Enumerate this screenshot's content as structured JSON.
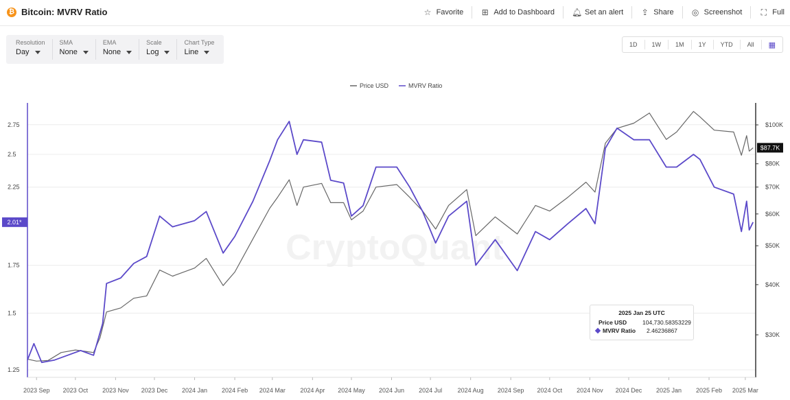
{
  "header": {
    "title": "Bitcoin: MVRV Ratio",
    "icon": "bitcoin-icon",
    "actions": [
      {
        "label": "Favorite",
        "icon": "star-icon"
      },
      {
        "label": "Add to Dashboard",
        "icon": "dashboard-add-icon"
      },
      {
        "label": "Set an alert",
        "icon": "bell-icon"
      },
      {
        "label": "Share",
        "icon": "share-icon"
      },
      {
        "label": "Screenshot",
        "icon": "camera-icon"
      },
      {
        "label": "Full",
        "icon": "fullscreen-icon"
      }
    ]
  },
  "controls": [
    {
      "label": "Resolution",
      "value": "Day"
    },
    {
      "label": "SMA",
      "value": "None"
    },
    {
      "label": "EMA",
      "value": "None"
    },
    {
      "label": "Scale",
      "value": "Log"
    },
    {
      "label": "Chart Type",
      "value": "Line"
    }
  ],
  "ranges": [
    "1D",
    "1W",
    "1M",
    "1Y",
    "YTD",
    "All"
  ],
  "watermark": "CryptoQuant",
  "tooltip": {
    "date": "2025 Jan 25 UTC",
    "rows": [
      {
        "name": "Price USD",
        "value": "104,730.58353229"
      },
      {
        "name": "MVRV Ratio",
        "value": "2.46236867"
      }
    ]
  },
  "chart_data": {
    "type": "line",
    "legend_position": "top-center",
    "grid": "horizontal",
    "x_ticks": [
      "2023 Sep",
      "2023 Oct",
      "2023 Nov",
      "2023 Dec",
      "2024 Jan",
      "2024 Feb",
      "2024 Mar",
      "2024 Apr",
      "2024 May",
      "2024 Jun",
      "2024 Jul",
      "2024 Aug",
      "2024 Sep",
      "2024 Oct",
      "2024 Nov",
      "2024 Dec",
      "2025 Jan",
      "2025 Feb",
      "2025 Mar"
    ],
    "left_axis": {
      "scale": "log",
      "ticks": [
        1.25,
        1.5,
        1.75,
        2.25,
        2.5,
        2.75
      ],
      "tick_labels": [
        "1.25",
        "1.5",
        "1.75",
        "2.25",
        "2.5",
        "2.75"
      ],
      "range": [
        1.22,
        2.95
      ],
      "current_label": "2.01*",
      "color": "#5b49c9"
    },
    "right_axis": {
      "scale": "log",
      "ticks": [
        30000,
        40000,
        50000,
        60000,
        70000,
        80000,
        100000
      ],
      "tick_labels": [
        "$30K",
        "$40K",
        "$50K",
        "$60K",
        "$70K",
        "$80K",
        "$100K"
      ],
      "current_label": "$87.7K",
      "current_value": 87700
    },
    "series": [
      {
        "name": "Price USD",
        "color": "#666666",
        "axis": "right",
        "points": [
          [
            "2023-08-25",
            26100
          ],
          [
            "2023-09-01",
            25800
          ],
          [
            "2023-09-10",
            25900
          ],
          [
            "2023-09-20",
            27100
          ],
          [
            "2023-10-01",
            27500
          ],
          [
            "2023-10-15",
            27100
          ],
          [
            "2023-10-20",
            29500
          ],
          [
            "2023-10-25",
            34200
          ],
          [
            "2023-11-05",
            35000
          ],
          [
            "2023-11-15",
            37000
          ],
          [
            "2023-11-25",
            37500
          ],
          [
            "2023-12-05",
            43500
          ],
          [
            "2023-12-15",
            42000
          ],
          [
            "2024-01-01",
            44000
          ],
          [
            "2024-01-10",
            46500
          ],
          [
            "2024-01-23",
            39800
          ],
          [
            "2024-02-01",
            43000
          ],
          [
            "2024-02-15",
            52000
          ],
          [
            "2024-02-28",
            62000
          ],
          [
            "2024-03-05",
            66000
          ],
          [
            "2024-03-14",
            73000
          ],
          [
            "2024-03-20",
            63000
          ],
          [
            "2024-03-25",
            70000
          ],
          [
            "2024-04-08",
            71500
          ],
          [
            "2024-04-15",
            64000
          ],
          [
            "2024-04-25",
            64000
          ],
          [
            "2024-05-01",
            58000
          ],
          [
            "2024-05-10",
            61000
          ],
          [
            "2024-05-20",
            70000
          ],
          [
            "2024-06-05",
            71000
          ],
          [
            "2024-06-15",
            66000
          ],
          [
            "2024-06-25",
            61000
          ],
          [
            "2024-07-05",
            55000
          ],
          [
            "2024-07-15",
            63000
          ],
          [
            "2024-07-29",
            69000
          ],
          [
            "2024-08-05",
            53000
          ],
          [
            "2024-08-20",
            59000
          ],
          [
            "2024-09-06",
            53500
          ],
          [
            "2024-09-20",
            63000
          ],
          [
            "2024-10-01",
            61000
          ],
          [
            "2024-10-15",
            66000
          ],
          [
            "2024-10-29",
            72000
          ],
          [
            "2024-11-05",
            68000
          ],
          [
            "2024-11-13",
            90000
          ],
          [
            "2024-11-22",
            98000
          ],
          [
            "2024-12-05",
            101000
          ],
          [
            "2024-12-17",
            107000
          ],
          [
            "2024-12-30",
            92000
          ],
          [
            "2025-01-07",
            96000
          ],
          [
            "2025-01-20",
            108000
          ],
          [
            "2025-01-25",
            104730
          ],
          [
            "2025-02-05",
            97000
          ],
          [
            "2025-02-20",
            96000
          ],
          [
            "2025-02-26",
            84000
          ],
          [
            "2025-03-02",
            94000
          ],
          [
            "2025-03-04",
            86000
          ],
          [
            "2025-03-07",
            87700
          ]
        ]
      },
      {
        "name": "MVRV Ratio",
        "color": "#5b49c9",
        "axis": "left",
        "points": [
          [
            "2023-08-25",
            1.29
          ],
          [
            "2023-08-30",
            1.36
          ],
          [
            "2023-09-05",
            1.28
          ],
          [
            "2023-09-15",
            1.29
          ],
          [
            "2023-09-25",
            1.31
          ],
          [
            "2023-10-05",
            1.33
          ],
          [
            "2023-10-15",
            1.31
          ],
          [
            "2023-10-22",
            1.45
          ],
          [
            "2023-10-25",
            1.65
          ],
          [
            "2023-11-05",
            1.68
          ],
          [
            "2023-11-15",
            1.76
          ],
          [
            "2023-11-25",
            1.8
          ],
          [
            "2023-12-05",
            2.05
          ],
          [
            "2023-12-15",
            1.98
          ],
          [
            "2024-01-01",
            2.02
          ],
          [
            "2024-01-10",
            2.08
          ],
          [
            "2024-01-23",
            1.82
          ],
          [
            "2024-02-01",
            1.92
          ],
          [
            "2024-02-15",
            2.15
          ],
          [
            "2024-02-28",
            2.45
          ],
          [
            "2024-03-05",
            2.62
          ],
          [
            "2024-03-14",
            2.78
          ],
          [
            "2024-03-20",
            2.5
          ],
          [
            "2024-03-25",
            2.62
          ],
          [
            "2024-04-08",
            2.6
          ],
          [
            "2024-04-15",
            2.3
          ],
          [
            "2024-04-25",
            2.28
          ],
          [
            "2024-05-01",
            2.05
          ],
          [
            "2024-05-10",
            2.12
          ],
          [
            "2024-05-20",
            2.4
          ],
          [
            "2024-06-05",
            2.4
          ],
          [
            "2024-06-15",
            2.25
          ],
          [
            "2024-06-25",
            2.08
          ],
          [
            "2024-07-05",
            1.88
          ],
          [
            "2024-07-15",
            2.05
          ],
          [
            "2024-07-29",
            2.15
          ],
          [
            "2024-08-05",
            1.75
          ],
          [
            "2024-08-20",
            1.9
          ],
          [
            "2024-09-06",
            1.72
          ],
          [
            "2024-09-20",
            1.95
          ],
          [
            "2024-10-01",
            1.9
          ],
          [
            "2024-10-15",
            2.0
          ],
          [
            "2024-10-29",
            2.1
          ],
          [
            "2024-11-05",
            2.0
          ],
          [
            "2024-11-13",
            2.55
          ],
          [
            "2024-11-22",
            2.72
          ],
          [
            "2024-12-05",
            2.62
          ],
          [
            "2024-12-17",
            2.62
          ],
          [
            "2024-12-30",
            2.4
          ],
          [
            "2025-01-07",
            2.4
          ],
          [
            "2025-01-20",
            2.5
          ],
          [
            "2025-01-25",
            2.46
          ],
          [
            "2025-02-05",
            2.25
          ],
          [
            "2025-02-20",
            2.2
          ],
          [
            "2025-02-26",
            1.95
          ],
          [
            "2025-03-02",
            2.15
          ],
          [
            "2025-03-04",
            1.96
          ],
          [
            "2025-03-07",
            2.01
          ]
        ]
      }
    ]
  }
}
